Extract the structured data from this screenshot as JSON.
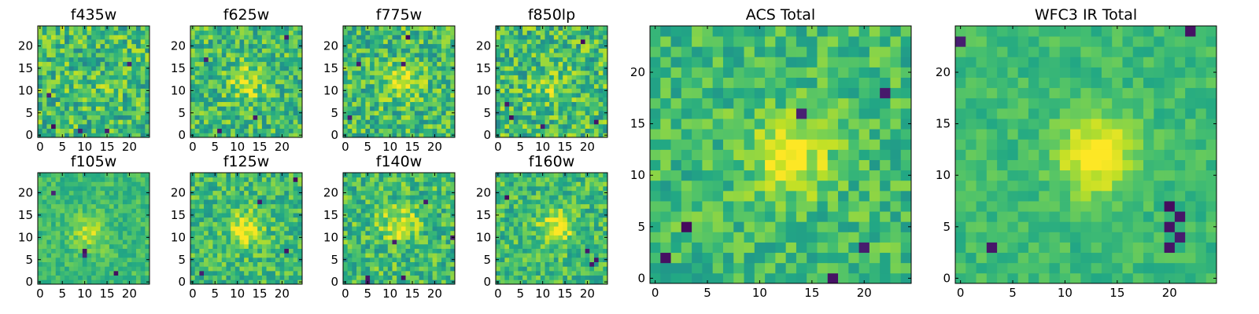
{
  "chart_data": [
    {
      "type": "heatmap",
      "title": "f435w",
      "x_ticks": [
        "0",
        "5",
        "10",
        "15",
        "20"
      ],
      "y_ticks": [
        "0",
        "5",
        "10",
        "15",
        "20"
      ],
      "xlim": [
        -0.5,
        24.5
      ],
      "ylim": [
        -0.5,
        24.5
      ],
      "grid_size": 25,
      "colormap": "viridis",
      "seed": 11,
      "blob_center": [
        12,
        11
      ],
      "blob_strength": 0.05,
      "noise": 0.42,
      "dark_spots": [
        [
          3,
          2
        ],
        [
          15,
          1
        ],
        [
          2,
          9
        ],
        [
          20,
          16
        ],
        [
          9,
          1
        ]
      ]
    },
    {
      "type": "heatmap",
      "title": "f625w",
      "x_ticks": [
        "0",
        "5",
        "10",
        "15",
        "20"
      ],
      "y_ticks": [
        "0",
        "5",
        "10",
        "15",
        "20"
      ],
      "xlim": [
        -0.5,
        24.5
      ],
      "ylim": [
        -0.5,
        24.5
      ],
      "grid_size": 25,
      "colormap": "viridis",
      "seed": 23,
      "blob_center": [
        12,
        12
      ],
      "blob_strength": 0.25,
      "noise": 0.38,
      "dark_spots": [
        [
          14,
          4
        ],
        [
          21,
          22
        ],
        [
          6,
          1
        ],
        [
          3,
          17
        ]
      ]
    },
    {
      "type": "heatmap",
      "title": "f775w",
      "x_ticks": [
        "0",
        "5",
        "10",
        "15",
        "20"
      ],
      "y_ticks": [
        "0",
        "5",
        "10",
        "15",
        "20"
      ],
      "xlim": [
        -0.5,
        24.5
      ],
      "ylim": [
        -0.5,
        24.5
      ],
      "grid_size": 25,
      "colormap": "viridis",
      "seed": 37,
      "blob_center": [
        13,
        12
      ],
      "blob_strength": 0.3,
      "noise": 0.4,
      "dark_spots": [
        [
          3,
          16
        ],
        [
          13,
          16
        ],
        [
          14,
          22
        ],
        [
          1,
          4
        ]
      ]
    },
    {
      "type": "heatmap",
      "title": "f850lp",
      "x_ticks": [
        "0",
        "5",
        "10",
        "15",
        "20"
      ],
      "y_ticks": [
        "0",
        "5",
        "10",
        "15",
        "20"
      ],
      "xlim": [
        -0.5,
        24.5
      ],
      "ylim": [
        -0.5,
        24.5
      ],
      "grid_size": 25,
      "colormap": "viridis",
      "seed": 41,
      "blob_center": [
        12,
        11
      ],
      "blob_strength": 0.18,
      "noise": 0.42,
      "dark_spots": [
        [
          2,
          7
        ],
        [
          3,
          4
        ],
        [
          19,
          21
        ],
        [
          22,
          3
        ],
        [
          10,
          2
        ]
      ]
    },
    {
      "type": "heatmap",
      "title": "f105w",
      "x_ticks": [
        "0",
        "5",
        "10",
        "15",
        "20"
      ],
      "y_ticks": [
        "0",
        "5",
        "10",
        "15",
        "20"
      ],
      "xlim": [
        -0.5,
        24.5
      ],
      "ylim": [
        -0.5,
        24.5
      ],
      "grid_size": 25,
      "colormap": "viridis",
      "seed": 53,
      "blob_center": [
        11,
        11
      ],
      "blob_strength": 0.22,
      "noise": 0.2,
      "dark_spots": [
        [
          10,
          6
        ],
        [
          10,
          7
        ],
        [
          17,
          2
        ],
        [
          3,
          20
        ]
      ]
    },
    {
      "type": "heatmap",
      "title": "f125w",
      "x_ticks": [
        "0",
        "5",
        "10",
        "15",
        "20"
      ],
      "y_ticks": [
        "0",
        "5",
        "10",
        "15",
        "20"
      ],
      "xlim": [
        -0.5,
        24.5
      ],
      "ylim": [
        -0.5,
        24.5
      ],
      "grid_size": 25,
      "colormap": "viridis",
      "seed": 67,
      "blob_center": [
        12,
        12
      ],
      "blob_strength": 0.32,
      "noise": 0.32,
      "dark_spots": [
        [
          15,
          18
        ],
        [
          2,
          2
        ],
        [
          21,
          7
        ],
        [
          23,
          23
        ]
      ]
    },
    {
      "type": "heatmap",
      "title": "f140w",
      "x_ticks": [
        "0",
        "5",
        "10",
        "15",
        "20"
      ],
      "y_ticks": [
        "0",
        "5",
        "10",
        "15",
        "20"
      ],
      "xlim": [
        -0.5,
        24.5
      ],
      "ylim": [
        -0.5,
        24.5
      ],
      "grid_size": 25,
      "colormap": "viridis",
      "seed": 79,
      "blob_center": [
        12,
        13
      ],
      "blob_strength": 0.3,
      "noise": 0.36,
      "dark_spots": [
        [
          5,
          0
        ],
        [
          5,
          1
        ],
        [
          13,
          1
        ],
        [
          18,
          18
        ],
        [
          11,
          9
        ],
        [
          24,
          10
        ]
      ]
    },
    {
      "type": "heatmap",
      "title": "f160w",
      "x_ticks": [
        "0",
        "5",
        "10",
        "15",
        "20"
      ],
      "y_ticks": [
        "0",
        "5",
        "10",
        "15",
        "20"
      ],
      "xlim": [
        -0.5,
        24.5
      ],
      "ylim": [
        -0.5,
        24.5
      ],
      "grid_size": 25,
      "colormap": "viridis",
      "seed": 83,
      "blob_center": [
        13,
        12
      ],
      "blob_strength": 0.34,
      "noise": 0.33,
      "dark_spots": [
        [
          20,
          7
        ],
        [
          21,
          4
        ],
        [
          22,
          5
        ],
        [
          2,
          19
        ]
      ]
    },
    {
      "type": "heatmap",
      "title": "ACS Total",
      "x_ticks": [
        "0",
        "5",
        "10",
        "15",
        "20"
      ],
      "y_ticks": [
        "0",
        "5",
        "10",
        "15",
        "20"
      ],
      "xlim": [
        -0.5,
        24.5
      ],
      "ylim": [
        -0.5,
        24.5
      ],
      "grid_size": 25,
      "colormap": "viridis",
      "seed": 97,
      "blob_center": [
        13,
        12
      ],
      "blob_strength": 0.32,
      "noise": 0.28,
      "dark_spots": [
        [
          14,
          16
        ],
        [
          17,
          0
        ],
        [
          20,
          3
        ],
        [
          1,
          2
        ],
        [
          22,
          18
        ],
        [
          3,
          5
        ]
      ]
    },
    {
      "type": "heatmap",
      "title": "WFC3 IR Total",
      "x_ticks": [
        "0",
        "5",
        "10",
        "15",
        "20"
      ],
      "y_ticks": [
        "0",
        "5",
        "10",
        "15",
        "20"
      ],
      "xlim": [
        -0.5,
        24.5
      ],
      "ylim": [
        -0.5,
        24.5
      ],
      "grid_size": 25,
      "colormap": "viridis",
      "seed": 101,
      "blob_center": [
        13,
        12
      ],
      "blob_strength": 0.38,
      "noise": 0.16,
      "dark_spots": [
        [
          20,
          7
        ],
        [
          21,
          6
        ],
        [
          20,
          5
        ],
        [
          21,
          4
        ],
        [
          20,
          3
        ],
        [
          0,
          23
        ],
        [
          3,
          3
        ],
        [
          22,
          24
        ]
      ]
    }
  ]
}
